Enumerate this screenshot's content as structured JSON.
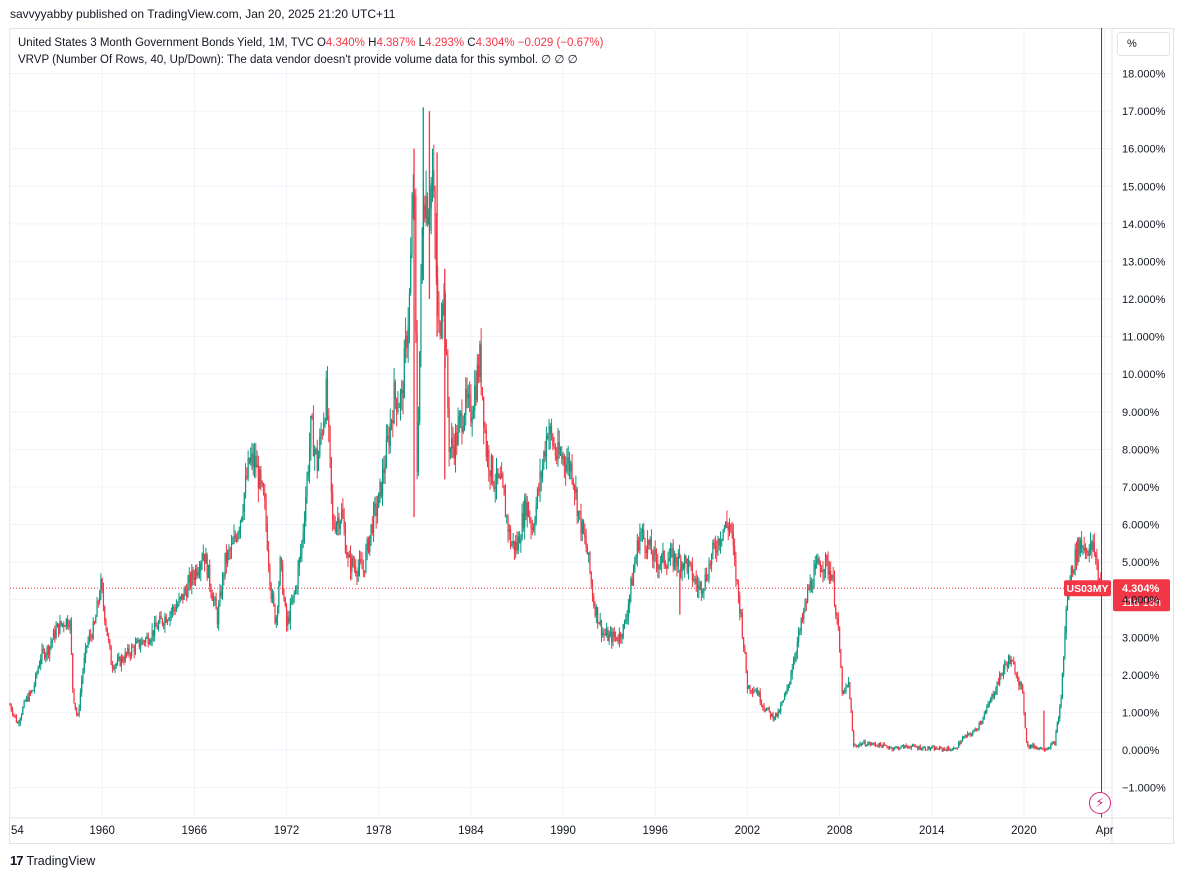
{
  "publisher_line": "savvyyabby published on TradingView.com, Jan 20, 2025 21:20 UTC+11",
  "legend": {
    "symbol": "United States 3 Month Government Bonds Yield, 1M, TVC",
    "open_label": "O",
    "open": "4.340%",
    "high_label": "H",
    "high": "4.387%",
    "low_label": "L",
    "low": "4.293%",
    "close_label": "C",
    "close": "4.304%",
    "change": "−0.029 (−0.67%)",
    "vrvp": "VRVP (Number Of Rows, 40, Up/Down): The data vendor doesn't provide volume data for this symbol.",
    "vrvp_values": "∅  ∅  ∅"
  },
  "unit_label": "%",
  "footer_brand": "TradingView",
  "colors": {
    "up": "#089981",
    "down": "#f23645",
    "grid": "#f0f3fa",
    "price_line": "#f23645"
  },
  "chart_data": {
    "type": "candlestick",
    "title": "United States 3 Month Government Bonds Yield",
    "interval": "1M",
    "ylim": [
      -1.5,
      18.5
    ],
    "y_ticks": [
      "18.000%",
      "17.000%",
      "16.000%",
      "15.000%",
      "14.000%",
      "13.000%",
      "12.000%",
      "11.000%",
      "10.000%",
      "9.000%",
      "8.000%",
      "7.000%",
      "6.000%",
      "5.000%",
      "4.000%",
      "3.000%",
      "2.000%",
      "1.000%",
      "0.000%",
      "−1.000%"
    ],
    "x_ticks": [
      "54",
      "1960",
      "1966",
      "1972",
      "1978",
      "1984",
      "1990",
      "1996",
      "2002",
      "2008",
      "2014",
      "2020",
      "Apr"
    ],
    "x_range": [
      1954.0,
      2025.6
    ],
    "last_price": 4.304,
    "last_label": "US03MY",
    "last_value_label": "4.304%",
    "countdown": "11d 13h",
    "cursor_line_x": 2025.05,
    "monthly_close_path": [
      [
        1954.0,
        1.2
      ],
      [
        1954.5,
        0.7
      ],
      [
        1955.0,
        1.3
      ],
      [
        1955.5,
        1.6
      ],
      [
        1956.0,
        2.5
      ],
      [
        1956.5,
        2.7
      ],
      [
        1957.0,
        3.2
      ],
      [
        1957.5,
        3.4
      ],
      [
        1957.9,
        3.5
      ],
      [
        1958.1,
        1.5
      ],
      [
        1958.4,
        0.8
      ],
      [
        1958.7,
        2.0
      ],
      [
        1959.0,
        2.8
      ],
      [
        1959.5,
        3.3
      ],
      [
        1959.9,
        4.4
      ],
      [
        1960.3,
        3.2
      ],
      [
        1960.6,
        2.3
      ],
      [
        1961.0,
        2.3
      ],
      [
        1962.0,
        2.7
      ],
      [
        1963.0,
        3.0
      ],
      [
        1964.0,
        3.5
      ],
      [
        1965.0,
        3.9
      ],
      [
        1966.0,
        4.7
      ],
      [
        1966.6,
        5.3
      ],
      [
        1967.0,
        4.5
      ],
      [
        1967.5,
        3.5
      ],
      [
        1968.0,
        5.0
      ],
      [
        1968.5,
        5.4
      ],
      [
        1969.0,
        6.2
      ],
      [
        1969.6,
        7.7
      ],
      [
        1970.0,
        7.6
      ],
      [
        1970.6,
        6.4
      ],
      [
        1971.0,
        4.2
      ],
      [
        1971.3,
        3.4
      ],
      [
        1971.6,
        5.0
      ],
      [
        1972.0,
        3.3
      ],
      [
        1972.6,
        4.3
      ],
      [
        1973.0,
        5.5
      ],
      [
        1973.6,
        8.6
      ],
      [
        1974.0,
        7.6
      ],
      [
        1974.6,
        9.5
      ],
      [
        1975.0,
        6.0
      ],
      [
        1975.6,
        6.3
      ],
      [
        1976.0,
        5.0
      ],
      [
        1977.0,
        4.8
      ],
      [
        1977.6,
        6.1
      ],
      [
        1978.0,
        6.6
      ],
      [
        1978.6,
        8.2
      ],
      [
        1979.0,
        9.4
      ],
      [
        1979.5,
        9.3
      ],
      [
        1980.0,
        12.0
      ],
      [
        1980.3,
        15.5
      ],
      [
        1980.5,
        7.5
      ],
      [
        1980.9,
        15.0
      ],
      [
        1981.2,
        14.5
      ],
      [
        1981.5,
        15.3
      ],
      [
        1981.9,
        11.0
      ],
      [
        1982.2,
        12.5
      ],
      [
        1982.6,
        8.0
      ],
      [
        1983.0,
        8.2
      ],
      [
        1983.6,
        9.2
      ],
      [
        1984.0,
        9.0
      ],
      [
        1984.6,
        10.4
      ],
      [
        1985.0,
        8.0
      ],
      [
        1985.5,
        7.2
      ],
      [
        1986.0,
        7.0
      ],
      [
        1986.6,
        5.5
      ],
      [
        1987.0,
        5.4
      ],
      [
        1987.6,
        6.6
      ],
      [
        1988.0,
        5.9
      ],
      [
        1988.6,
        7.4
      ],
      [
        1989.0,
        8.6
      ],
      [
        1989.6,
        7.8
      ],
      [
        1990.0,
        7.8
      ],
      [
        1990.6,
        7.5
      ],
      [
        1991.0,
        6.3
      ],
      [
        1991.6,
        5.2
      ],
      [
        1992.0,
        3.9
      ],
      [
        1992.6,
        3.1
      ],
      [
        1993.0,
        3.0
      ],
      [
        1993.6,
        3.0
      ],
      [
        1994.0,
        3.3
      ],
      [
        1994.6,
        4.8
      ],
      [
        1995.0,
        5.8
      ],
      [
        1995.6,
        5.4
      ],
      [
        1996.0,
        5.0
      ],
      [
        1997.0,
        5.1
      ],
      [
        1998.0,
        5.0
      ],
      [
        1998.8,
        4.3
      ],
      [
        1999.2,
        4.5
      ],
      [
        1999.8,
        5.3
      ],
      [
        2000.4,
        5.9
      ],
      [
        2000.9,
        6.0
      ],
      [
        2001.2,
        4.8
      ],
      [
        2001.6,
        3.5
      ],
      [
        2002.0,
        1.7
      ],
      [
        2002.6,
        1.6
      ],
      [
        2003.0,
        1.2
      ],
      [
        2003.6,
        0.9
      ],
      [
        2004.0,
        0.95
      ],
      [
        2004.6,
        1.6
      ],
      [
        2005.0,
        2.4
      ],
      [
        2005.6,
        3.5
      ],
      [
        2006.0,
        4.3
      ],
      [
        2006.6,
        4.9
      ],
      [
        2007.0,
        5.0
      ],
      [
        2007.5,
        4.7
      ],
      [
        2007.9,
        3.2
      ],
      [
        2008.2,
        1.4
      ],
      [
        2008.6,
        1.8
      ],
      [
        2008.9,
        0.1
      ],
      [
        2009.5,
        0.18
      ],
      [
        2010.5,
        0.14
      ],
      [
        2011.5,
        0.05
      ],
      [
        2012.5,
        0.1
      ],
      [
        2013.5,
        0.05
      ],
      [
        2014.5,
        0.03
      ],
      [
        2015.5,
        0.02
      ],
      [
        2016.0,
        0.3
      ],
      [
        2016.8,
        0.5
      ],
      [
        2017.5,
        1.0
      ],
      [
        2018.0,
        1.5
      ],
      [
        2018.6,
        2.1
      ],
      [
        2019.0,
        2.4
      ],
      [
        2019.5,
        2.1
      ],
      [
        2019.9,
        1.5
      ],
      [
        2020.2,
        0.1
      ],
      [
        2020.6,
        0.1
      ],
      [
        2021.0,
        0.05
      ],
      [
        2021.5,
        0.05
      ],
      [
        2022.0,
        0.2
      ],
      [
        2022.4,
        1.3
      ],
      [
        2022.8,
        4.0
      ],
      [
        2023.1,
        4.8
      ],
      [
        2023.6,
        5.5
      ],
      [
        2024.0,
        5.4
      ],
      [
        2024.6,
        5.3
      ],
      [
        2024.9,
        4.5
      ],
      [
        2025.05,
        4.3
      ]
    ],
    "spikes": [
      {
        "x": 1980.3,
        "low": 6.2,
        "high": 16.0,
        "dir": "down"
      },
      {
        "x": 1980.9,
        "low": 12.5,
        "high": 17.1,
        "dir": "up"
      },
      {
        "x": 1981.3,
        "low": 12.0,
        "high": 17.0,
        "dir": "down"
      },
      {
        "x": 1981.8,
        "low": 11.0,
        "high": 15.9,
        "dir": "down"
      },
      {
        "x": 1982.3,
        "low": 7.2,
        "high": 12.8,
        "dir": "down"
      },
      {
        "x": 2021.3,
        "low": 0.05,
        "high": 1.05,
        "dir": "down"
      },
      {
        "x": 1997.6,
        "low": 3.6,
        "high": 4.8,
        "dir": "down"
      }
    ]
  }
}
